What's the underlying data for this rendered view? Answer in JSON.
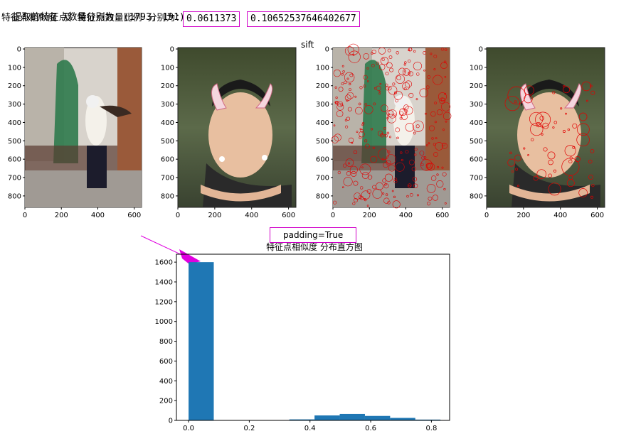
{
  "output": {
    "line1_label": "提取的特征点数量分别为：",
    "line1_value": "(1793, 191)",
    "line2_label": "特征点相似度 及 特征点数量比例 分别为：",
    "similarity": "0.0611373",
    "ratio": "0.10652537646402677"
  },
  "figure": {
    "suptitle": "sift",
    "panels": [
      {
        "name": "original-photo",
        "description": "woman in traditional jacket by a wall"
      },
      {
        "name": "template-photo",
        "description": "man with devil horns overlay"
      },
      {
        "name": "original-keypoints",
        "description": "keypoints drawn in red"
      },
      {
        "name": "template-keypoints",
        "description": "keypoints drawn in red"
      }
    ],
    "image_axes": {
      "xticks": [
        "0",
        "200",
        "400",
        "600"
      ],
      "yticks": [
        "0",
        "100",
        "200",
        "300",
        "400",
        "500",
        "600",
        "700",
        "800"
      ]
    }
  },
  "annotation": {
    "padding_label": "padding=True",
    "arrow_color": "#e000e0",
    "box_color": "#d000c8"
  },
  "chart_data": {
    "type": "bar",
    "title": "特征点相似度 分布直方图",
    "xlabel": "",
    "ylabel": "",
    "xlim": [
      -0.04,
      0.86
    ],
    "ylim": [
      0,
      1680
    ],
    "xticks": [
      "0.0",
      "0.2",
      "0.4",
      "0.6",
      "0.8"
    ],
    "yticks": [
      "0",
      "200",
      "400",
      "600",
      "800",
      "1000",
      "1200",
      "1400",
      "1600"
    ],
    "bins": [
      {
        "x0": 0.0,
        "x1": 0.083,
        "value": 1600
      },
      {
        "x0": 0.083,
        "x1": 0.166,
        "value": 0
      },
      {
        "x0": 0.166,
        "x1": 0.249,
        "value": 0
      },
      {
        "x0": 0.249,
        "x1": 0.332,
        "value": 2
      },
      {
        "x0": 0.332,
        "x1": 0.415,
        "value": 10
      },
      {
        "x0": 0.415,
        "x1": 0.498,
        "value": 50
      },
      {
        "x0": 0.498,
        "x1": 0.581,
        "value": 65
      },
      {
        "x0": 0.581,
        "x1": 0.664,
        "value": 45
      },
      {
        "x0": 0.664,
        "x1": 0.747,
        "value": 25
      },
      {
        "x0": 0.747,
        "x1": 0.83,
        "value": 8
      }
    ],
    "bar_color": "#1f77b4"
  }
}
